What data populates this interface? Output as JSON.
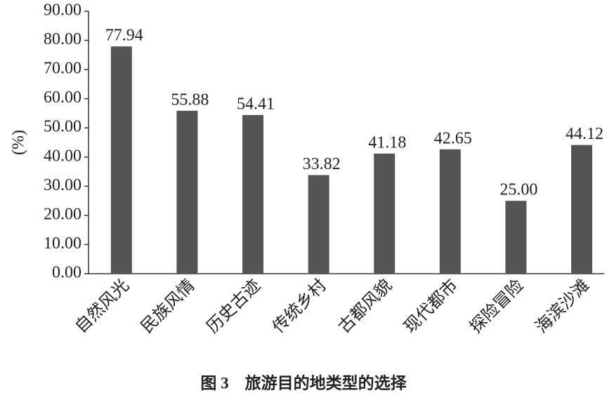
{
  "chart_data": {
    "type": "bar",
    "title": "图 3　旅游目的地类型的选择",
    "y_label": "(%)",
    "categories": [
      "自然风光",
      "民族风情",
      "历史古迹",
      "传统乡村",
      "古都风貌",
      "现代都市",
      "探险冒险",
      "海滨沙滩"
    ],
    "values": [
      77.94,
      55.88,
      54.41,
      33.82,
      41.18,
      42.65,
      25,
      44.12
    ],
    "value_labels": [
      "77.94",
      "55.88",
      "54.41",
      "33.82",
      "41.18",
      "42.65",
      "25.00",
      "44.12"
    ],
    "color": "#555555",
    "ylim": [
      0,
      90
    ],
    "yticks": [
      {
        "value": 0,
        "label": "0.00"
      },
      {
        "value": 10,
        "label": "10.00"
      },
      {
        "value": 20,
        "label": "20.00"
      },
      {
        "value": 30,
        "label": "30.00"
      },
      {
        "value": 40,
        "label": "40.00"
      },
      {
        "value": 50,
        "label": "50.00"
      },
      {
        "value": 60,
        "label": "60.00"
      },
      {
        "value": 70,
        "label": "70.00"
      },
      {
        "value": 80,
        "label": "80.00"
      },
      {
        "value": 90,
        "label": "90.00"
      }
    ],
    "grid": false
  }
}
